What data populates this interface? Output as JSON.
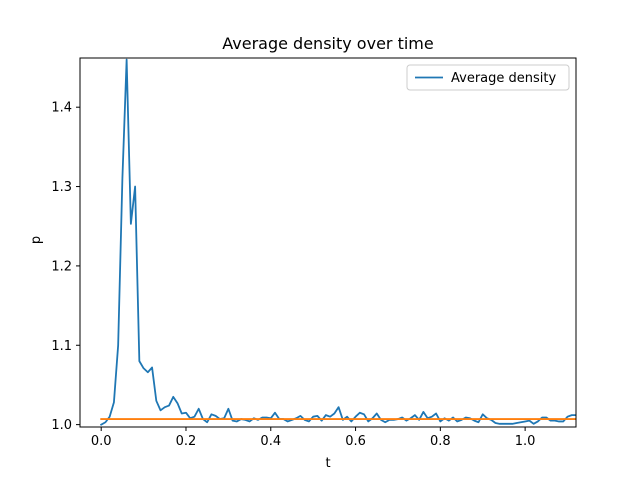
{
  "chart_data": {
    "type": "line",
    "title": "Average density over time",
    "xlabel": "t",
    "ylabel": "p",
    "xlim": [
      -0.05,
      1.12
    ],
    "ylim": [
      0.997,
      1.462
    ],
    "xticks": [
      0.0,
      0.2,
      0.4,
      0.6,
      0.8,
      1.0
    ],
    "xtick_labels": [
      "0.0",
      "0.2",
      "0.4",
      "0.6",
      "0.8",
      "1.0"
    ],
    "yticks": [
      1.0,
      1.1,
      1.2,
      1.3,
      1.4
    ],
    "ytick_labels": [
      "1.0",
      "1.1",
      "1.2",
      "1.3",
      "1.4"
    ],
    "grid": false,
    "legend_position": "upper-right",
    "series": [
      {
        "name": "Average density",
        "color": "#1f77b4",
        "x": [
          0.0,
          0.01,
          0.02,
          0.03,
          0.04,
          0.05,
          0.06,
          0.07,
          0.08,
          0.09,
          0.1,
          0.11,
          0.12,
          0.13,
          0.14,
          0.15,
          0.16,
          0.17,
          0.18,
          0.19,
          0.2,
          0.21,
          0.22,
          0.23,
          0.24,
          0.25,
          0.26,
          0.27,
          0.28,
          0.29,
          0.3,
          0.31,
          0.32,
          0.33,
          0.34,
          0.35,
          0.36,
          0.37,
          0.38,
          0.39,
          0.4,
          0.41,
          0.42,
          0.43,
          0.44,
          0.45,
          0.46,
          0.47,
          0.48,
          0.49,
          0.5,
          0.51,
          0.52,
          0.53,
          0.54,
          0.55,
          0.56,
          0.57,
          0.58,
          0.59,
          0.6,
          0.61,
          0.62,
          0.63,
          0.64,
          0.65,
          0.66,
          0.67,
          0.68,
          0.69,
          0.7,
          0.71,
          0.72,
          0.73,
          0.74,
          0.75,
          0.76,
          0.77,
          0.78,
          0.79,
          0.8,
          0.81,
          0.82,
          0.83,
          0.84,
          0.85,
          0.86,
          0.87,
          0.88,
          0.89,
          0.9,
          0.91,
          0.92,
          0.93,
          0.94,
          0.95,
          0.96,
          0.97,
          0.98,
          0.99,
          1.0,
          1.01,
          1.02,
          1.03,
          1.04,
          1.05,
          1.06,
          1.07,
          1.08,
          1.09,
          1.1,
          1.11,
          1.12
        ],
        "values": [
          1.0,
          1.003,
          1.01,
          1.028,
          1.1,
          1.31,
          1.46,
          1.253,
          1.3,
          1.08,
          1.071,
          1.066,
          1.072,
          1.03,
          1.018,
          1.022,
          1.024,
          1.035,
          1.027,
          1.014,
          1.015,
          1.008,
          1.01,
          1.02,
          1.007,
          1.003,
          1.013,
          1.011,
          1.007,
          1.008,
          1.02,
          1.005,
          1.004,
          1.007,
          1.006,
          1.004,
          1.008,
          1.006,
          1.009,
          1.009,
          1.008,
          1.015,
          1.007,
          1.007,
          1.004,
          1.006,
          1.008,
          1.011,
          1.006,
          1.004,
          1.01,
          1.011,
          1.005,
          1.012,
          1.01,
          1.014,
          1.022,
          1.006,
          1.01,
          1.004,
          1.01,
          1.015,
          1.013,
          1.004,
          1.008,
          1.014,
          1.006,
          1.003,
          1.006,
          1.006,
          1.007,
          1.009,
          1.005,
          1.008,
          1.012,
          1.006,
          1.016,
          1.008,
          1.01,
          1.014,
          1.004,
          1.008,
          1.005,
          1.009,
          1.004,
          1.006,
          1.009,
          1.008,
          1.005,
          1.003,
          1.013,
          1.008,
          1.006,
          1.002,
          1.001,
          1.001,
          1.001,
          1.001,
          1.002,
          1.003,
          1.004,
          1.005,
          1.001,
          1.004,
          1.009,
          1.009,
          1.005,
          1.005,
          1.004,
          1.004,
          1.01,
          1.012,
          1.012
        ]
      },
      {
        "color": "#ff7f0e",
        "x": [
          0.0,
          1.12
        ],
        "values": [
          1.007,
          1.007
        ]
      }
    ]
  }
}
